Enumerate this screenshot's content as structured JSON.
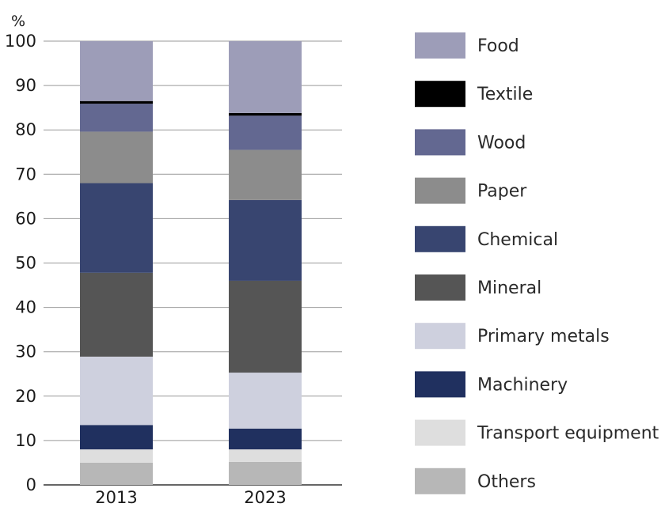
{
  "chart_data": {
    "type": "bar",
    "stacked": true,
    "ylabel": "%",
    "ylim": [
      0,
      100
    ],
    "yticks": [
      0,
      10,
      20,
      30,
      40,
      50,
      60,
      70,
      80,
      90,
      100
    ],
    "grid": true,
    "legend_position": "right",
    "categories": [
      "2013",
      "2023"
    ],
    "series": [
      {
        "name": "Others",
        "color": "#b7b7b7",
        "values": [
          5.0,
          5.2
        ]
      },
      {
        "name": "Transport equipment",
        "color": "#dedede",
        "values": [
          3.0,
          2.8
        ]
      },
      {
        "name": "Machinery",
        "color": "#20305f",
        "values": [
          5.5,
          4.7
        ]
      },
      {
        "name": "Primary metals",
        "color": "#ced0de",
        "values": [
          15.4,
          12.6
        ]
      },
      {
        "name": "Mineral",
        "color": "#555555",
        "values": [
          18.9,
          20.7
        ]
      },
      {
        "name": "Chemical",
        "color": "#384570",
        "values": [
          20.2,
          18.2
        ]
      },
      {
        "name": "Paper",
        "color": "#8c8c8c",
        "values": [
          11.6,
          11.3
        ]
      },
      {
        "name": "Wood",
        "color": "#636891",
        "values": [
          6.3,
          7.7
        ]
      },
      {
        "name": "Textile",
        "color": "#000000",
        "values": [
          0.6,
          0.6
        ]
      },
      {
        "name": "Food",
        "color": "#9d9db8",
        "values": [
          13.5,
          16.2
        ]
      }
    ]
  }
}
